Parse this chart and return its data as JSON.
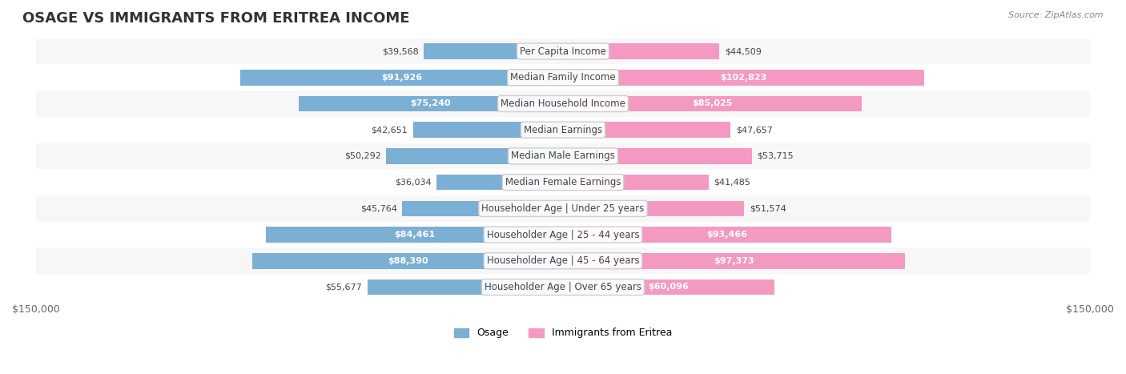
{
  "title": "OSAGE VS IMMIGRANTS FROM ERITREA INCOME",
  "source": "Source: ZipAtlas.com",
  "categories": [
    "Per Capita Income",
    "Median Family Income",
    "Median Household Income",
    "Median Earnings",
    "Median Male Earnings",
    "Median Female Earnings",
    "Householder Age | Under 25 years",
    "Householder Age | 25 - 44 years",
    "Householder Age | 45 - 64 years",
    "Householder Age | Over 65 years"
  ],
  "osage_values": [
    39568,
    91926,
    75240,
    42651,
    50292,
    36034,
    45764,
    84461,
    88390,
    55677
  ],
  "eritrea_values": [
    44509,
    102823,
    85025,
    47657,
    53715,
    41485,
    51574,
    93466,
    97373,
    60096
  ],
  "osage_labels": [
    "$39,568",
    "$91,926",
    "$75,240",
    "$42,651",
    "$50,292",
    "$36,034",
    "$45,764",
    "$84,461",
    "$88,390",
    "$55,677"
  ],
  "eritrea_labels": [
    "$44,509",
    "$102,823",
    "$85,025",
    "$47,657",
    "$53,715",
    "$41,485",
    "$51,574",
    "$93,466",
    "$97,373",
    "$60,096"
  ],
  "osage_color": "#7bafd4",
  "eritrea_color": "#f49ac2",
  "osage_color_dark": "#5b8fc4",
  "eritrea_color_dark": "#f06fa0",
  "bar_bg_color": "#f0f0f0",
  "row_bg_color_even": "#f7f7f7",
  "row_bg_color_odd": "#ffffff",
  "max_value": 150000,
  "xlabel_left": "$150,000",
  "xlabel_right": "$150,000",
  "legend_osage": "Osage",
  "legend_eritrea": "Immigrants from Eritrea",
  "title_fontsize": 13,
  "label_fontsize": 8.5,
  "category_fontsize": 8.5,
  "value_fontsize": 8.0
}
